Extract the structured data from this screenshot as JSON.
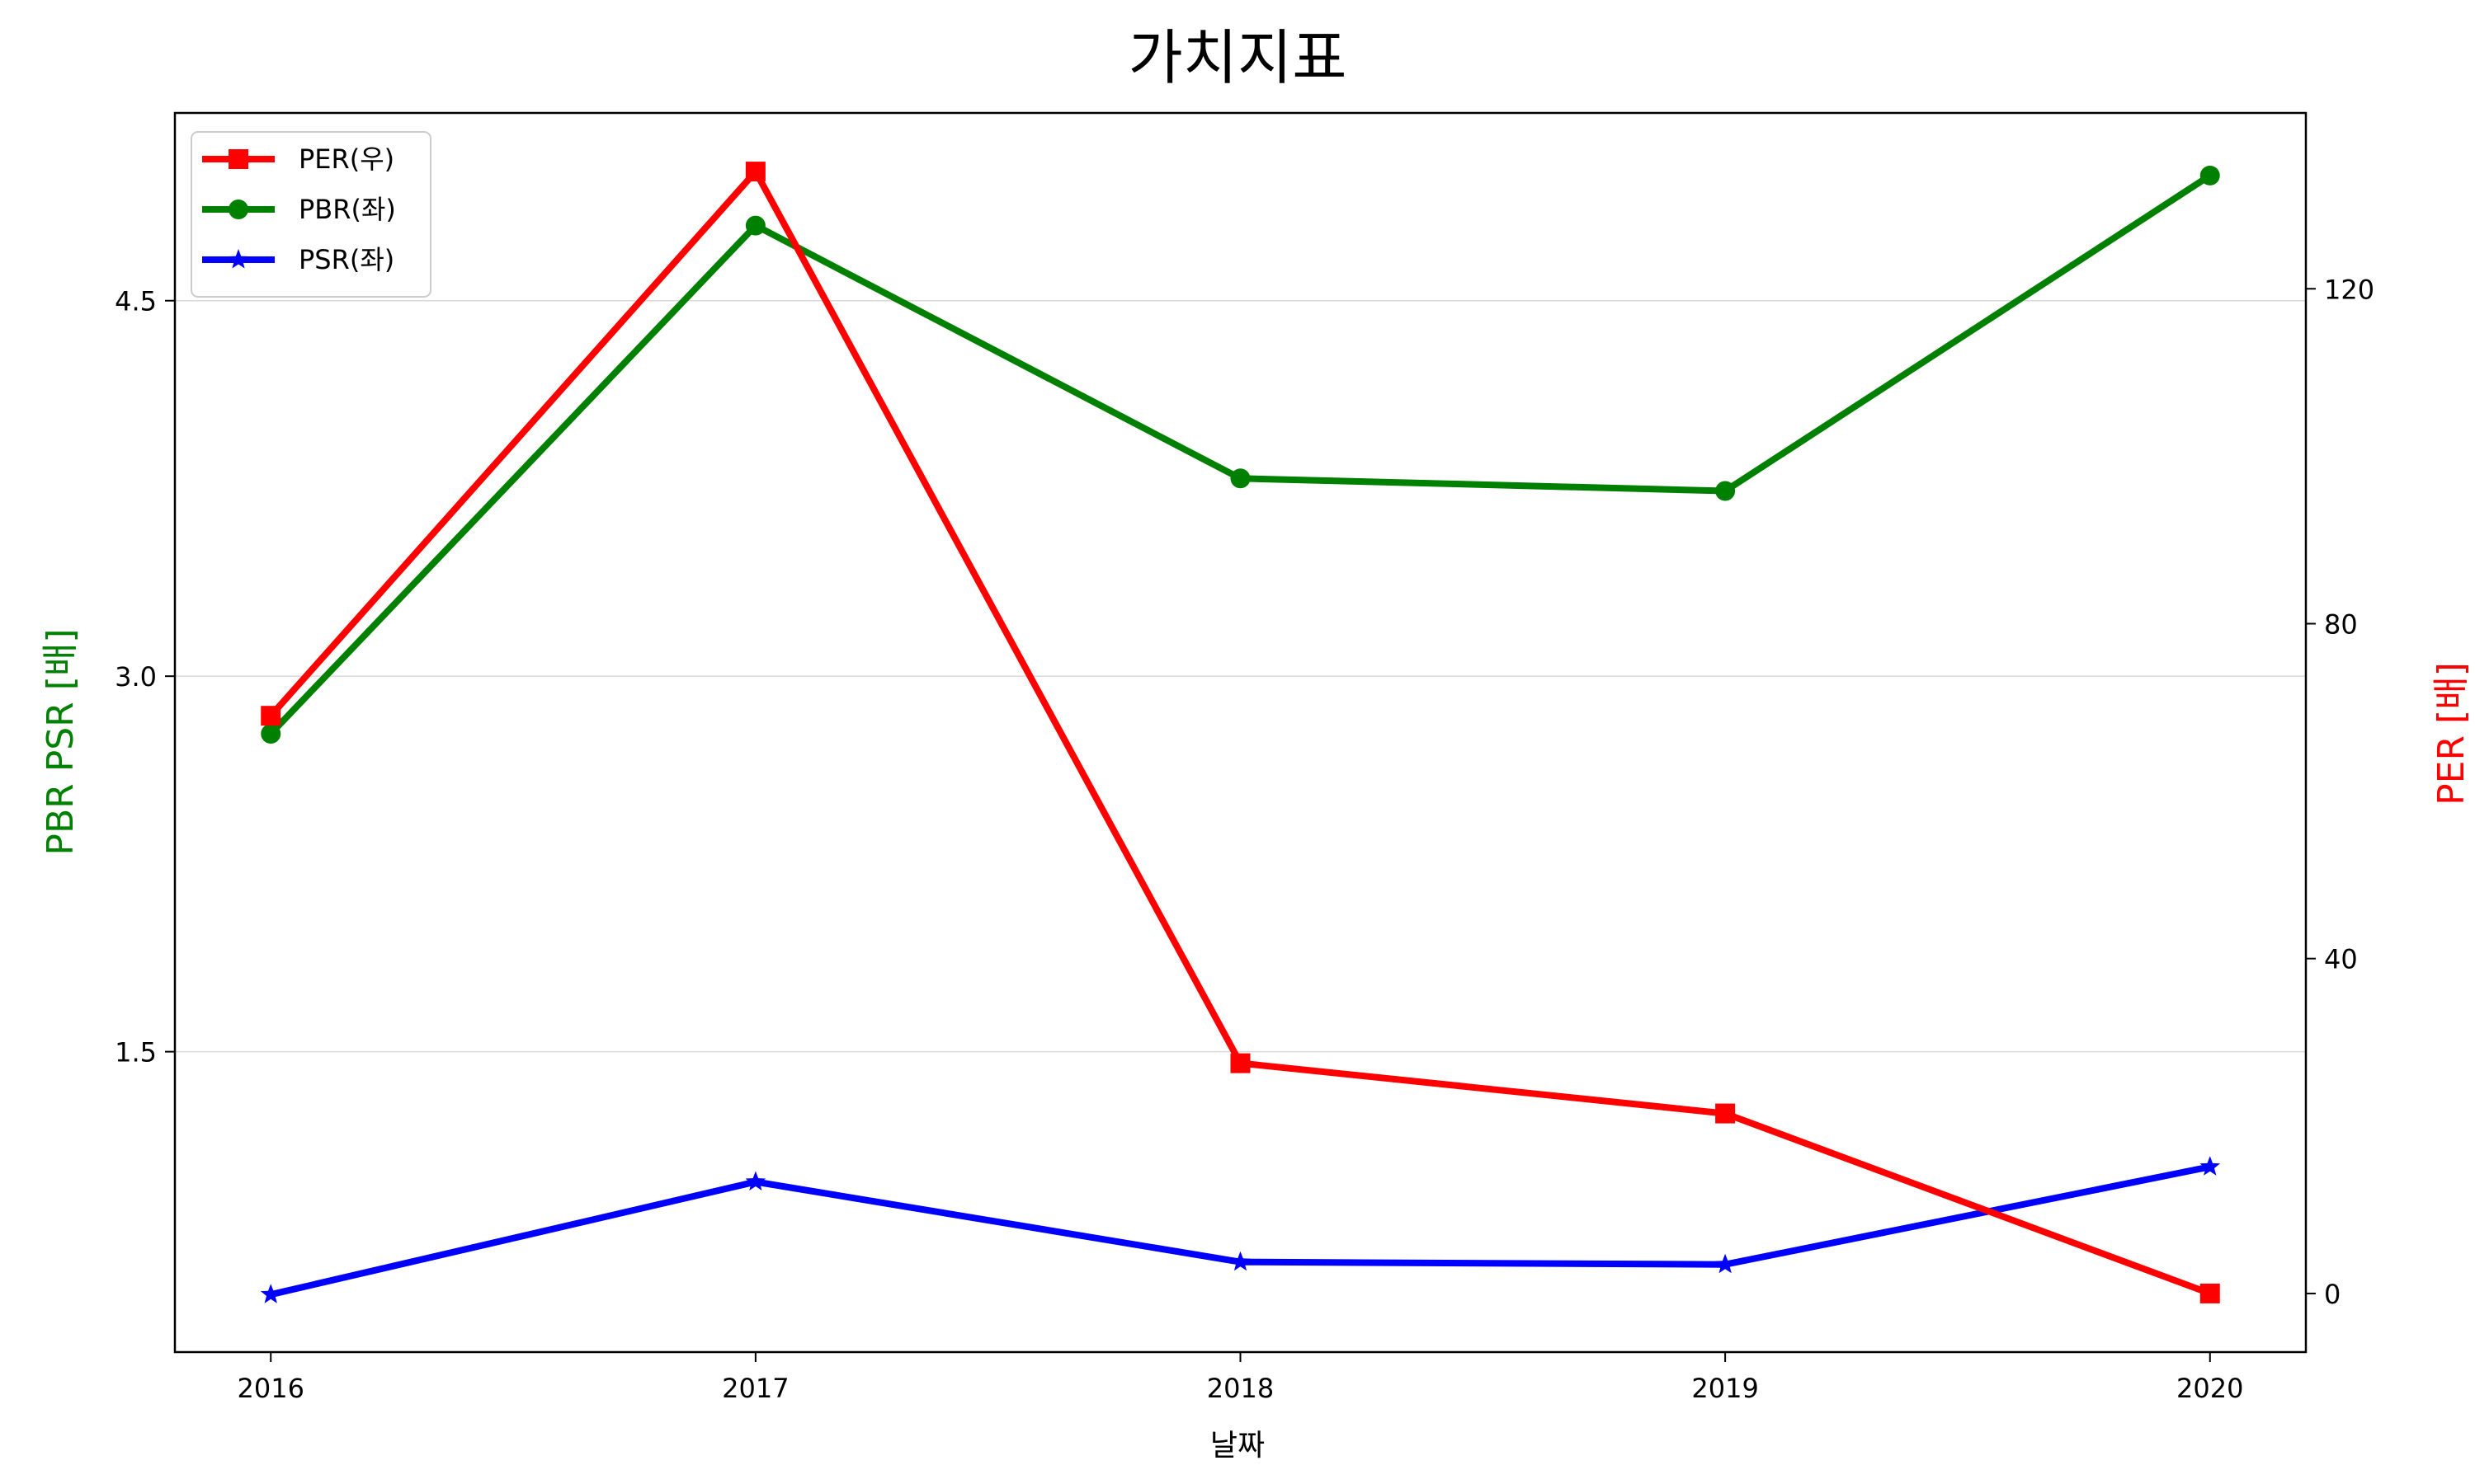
{
  "chart_data": {
    "type": "line",
    "title": "가치지표",
    "xlabel": "날짜",
    "ylabel_left": "PBR PSR [배]",
    "ylabel_right": "PER [배]",
    "categories": [
      "2016",
      "2017",
      "2018",
      "2019",
      "2020"
    ],
    "y_left": {
      "lim": [
        0.3,
        5.25
      ],
      "ticks": [
        "1.5",
        "3.0",
        "4.5"
      ]
    },
    "y_right": {
      "lim": [
        -7,
        141
      ],
      "ticks": [
        "0",
        "40",
        "80",
        "120"
      ]
    },
    "grid": true,
    "legend_position": "upper-left",
    "series": [
      {
        "name": "PER(우)",
        "axis": "right",
        "marker": "square",
        "color": "#ff0000",
        "values": [
          69,
          134,
          27.5,
          21.5,
          0
        ]
      },
      {
        "name": "PBR(좌)",
        "axis": "left",
        "marker": "circle",
        "color": "#008000",
        "values": [
          2.77,
          4.8,
          3.79,
          3.74,
          5.0
        ]
      },
      {
        "name": "PSR(좌)",
        "axis": "left",
        "marker": "star",
        "color": "#0000ff",
        "values": [
          0.53,
          0.98,
          0.66,
          0.65,
          1.04
        ]
      }
    ],
    "colors": {
      "left_label": "#008000",
      "right_label": "#ff0000",
      "grid": "#d9d9d9",
      "axes": "#000000"
    }
  }
}
